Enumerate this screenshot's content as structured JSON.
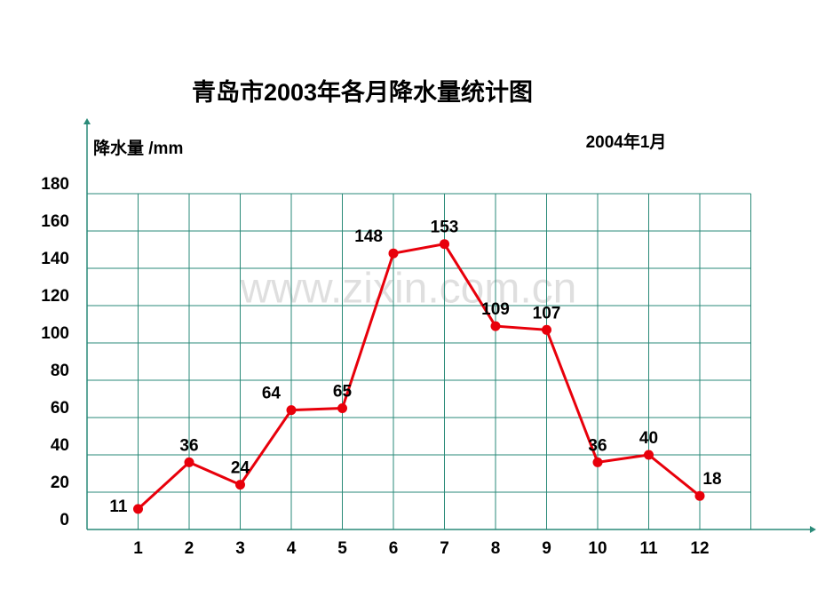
{
  "chart_data": {
    "type": "line",
    "title": "青岛市2003年各月降水量统计图",
    "y_label": "降水量 /mm",
    "annotation": "2004年1月",
    "watermark": "www.zixin.com.cn",
    "categories": [
      "1",
      "2",
      "3",
      "4",
      "5",
      "6",
      "7",
      "8",
      "9",
      "10",
      "11",
      "12"
    ],
    "values": [
      11,
      36,
      24,
      64,
      65,
      148,
      153,
      109,
      107,
      36,
      40,
      18
    ],
    "color": "#e8000b",
    "grid_color": "#2a8a78",
    "ylim": [
      0,
      180
    ],
    "yticks": [
      0,
      20,
      40,
      60,
      80,
      100,
      120,
      140,
      160,
      180
    ],
    "grid": true
  }
}
